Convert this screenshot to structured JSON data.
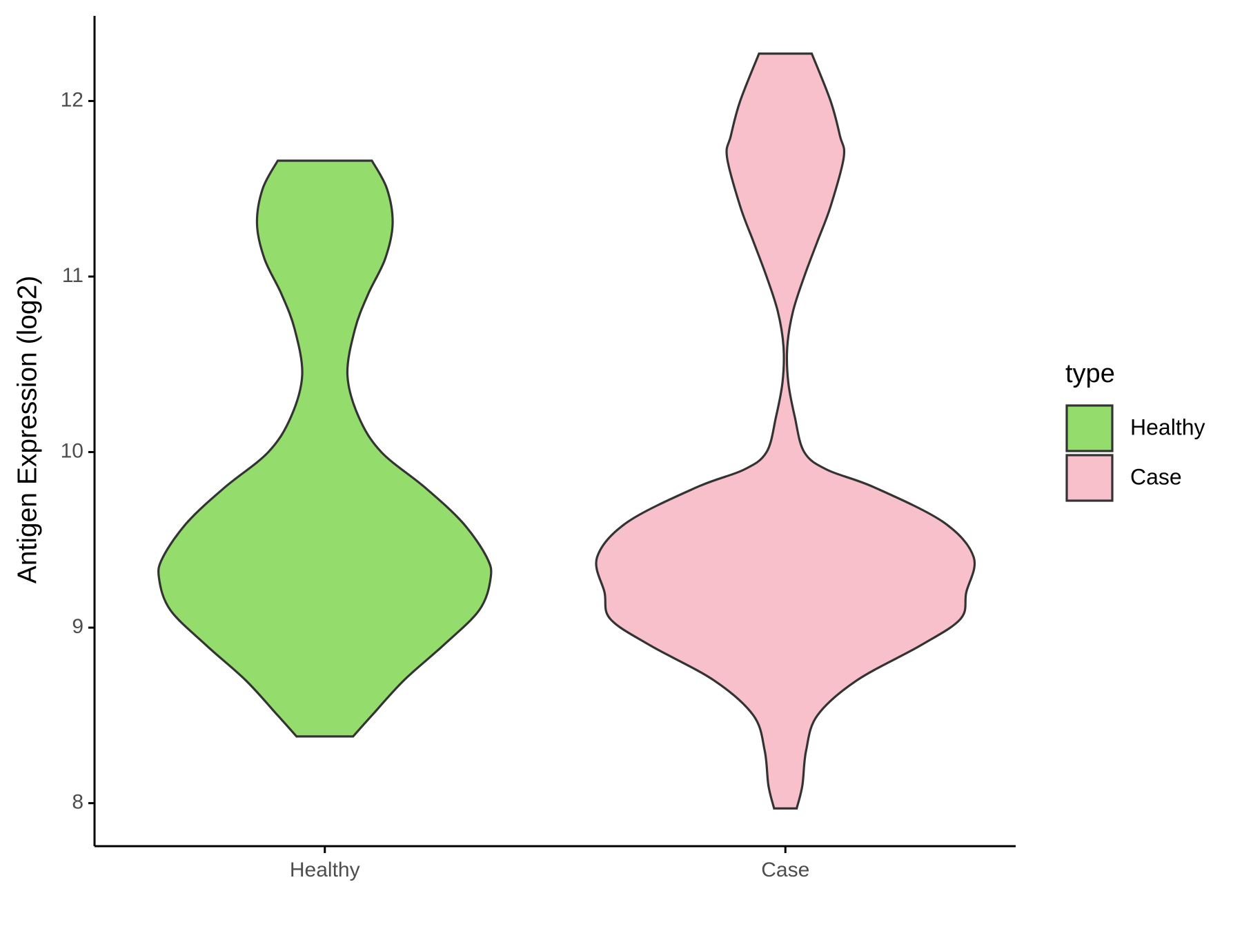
{
  "chart_data": {
    "type": "violin",
    "y_label": "Antigen Expression (log2)",
    "categories": [
      "Healthy",
      "Case"
    ],
    "legend_title": "type",
    "legend": "right",
    "ylim": [
      7.755,
      12.485
    ],
    "yticks": [
      8,
      9,
      10,
      11,
      12
    ],
    "series": [
      {
        "name": "Healthy",
        "color": "#94dc6b",
        "y": [
          11.66,
          11.5,
          11.3,
          11.1,
          10.9,
          10.7,
          10.44,
          10.2,
          10.0,
          9.8,
          9.6,
          9.4,
          9.28,
          9.1,
          8.9,
          8.7,
          8.5,
          8.38
        ],
        "density": [
          0.25,
          0.33,
          0.36,
          0.32,
          0.23,
          0.16,
          0.12,
          0.18,
          0.3,
          0.53,
          0.73,
          0.86,
          0.88,
          0.82,
          0.63,
          0.42,
          0.25,
          0.15
        ]
      },
      {
        "name": "Case",
        "color": "#f7c0cb",
        "y": [
          12.27,
          12.0,
          11.8,
          11.68,
          11.4,
          11.2,
          11.0,
          10.8,
          10.6,
          10.4,
          10.2,
          10.0,
          9.9,
          9.8,
          9.6,
          9.4,
          9.2,
          9.05,
          8.9,
          8.7,
          8.5,
          8.3,
          8.1,
          7.97
        ],
        "density": [
          0.14,
          0.24,
          0.29,
          0.31,
          0.24,
          0.17,
          0.1,
          0.04,
          0.01,
          0.015,
          0.05,
          0.1,
          0.22,
          0.47,
          0.84,
          1.0,
          0.96,
          0.93,
          0.72,
          0.38,
          0.17,
          0.11,
          0.09,
          0.06
        ]
      }
    ]
  }
}
